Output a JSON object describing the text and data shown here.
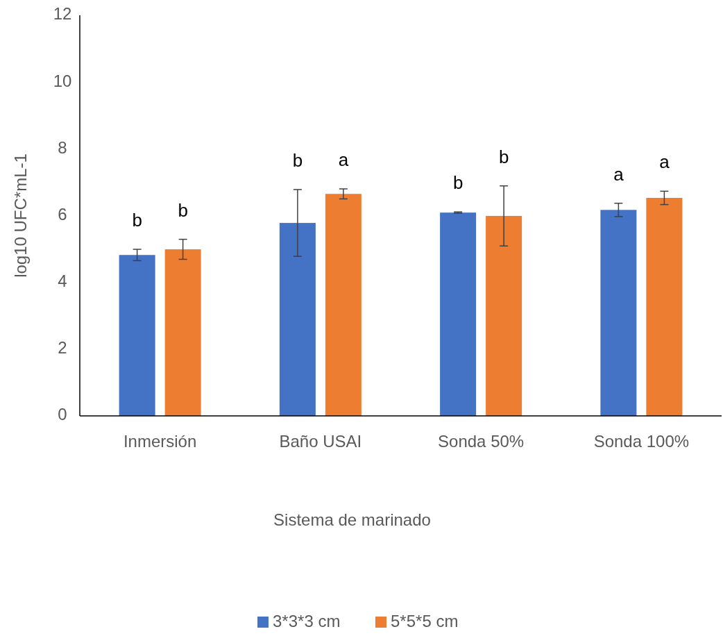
{
  "chart_data": {
    "type": "bar",
    "xlabel": "Sistema de marinado",
    "ylabel": "log10 UFC*mL-1",
    "categories": [
      "Inmersión",
      "Baño USAI",
      "Sonda 50%",
      "Sonda 100%"
    ],
    "series": [
      {
        "name": "3*3*3 cm",
        "color": "#4472c4",
        "values": [
          4.82,
          5.78,
          6.09,
          6.17
        ],
        "errors": [
          0.17,
          1.0,
          0.02,
          0.2
        ]
      },
      {
        "name": "5*5*5 cm",
        "color": "#ed7d31",
        "values": [
          4.99,
          6.65,
          5.99,
          6.53
        ],
        "errors": [
          0.3,
          0.15,
          0.9,
          0.2
        ]
      }
    ],
    "ylim": [
      0,
      12
    ],
    "yticks": [
      0,
      2,
      4,
      6,
      8,
      10,
      12
    ],
    "grid": false,
    "legend": "bottom",
    "annotations": [
      "b",
      "b",
      "b",
      "a",
      "b",
      "b",
      "a",
      "a"
    ]
  }
}
